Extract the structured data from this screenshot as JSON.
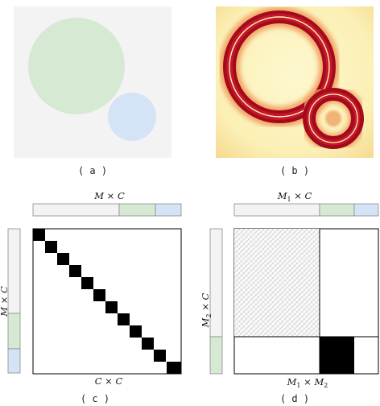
{
  "panels": {
    "a": {
      "caption": "( a )"
    },
    "b": {
      "caption": "( b )"
    },
    "c": {
      "caption": "( c )",
      "top_label": "M × C",
      "left_label": "M × C",
      "bottom_label": "C × C"
    },
    "d": {
      "caption": "( d )",
      "top_label_main": "M",
      "top_label_sub": "1",
      "top_label_rest": " × C",
      "left_label_main": "M",
      "left_label_sub": "2",
      "left_label_rest": " × C",
      "bottom_label_a": "M",
      "bottom_label_a_sub": "1",
      "bottom_label_x": " × ",
      "bottom_label_b": "M",
      "bottom_label_b_sub": "2"
    }
  },
  "colors": {
    "gray_segment": "#f3f3f3",
    "green_segment": "#d6ead3",
    "blue_segment": "#d5e3f7",
    "diagonal_block": "#000000"
  }
}
